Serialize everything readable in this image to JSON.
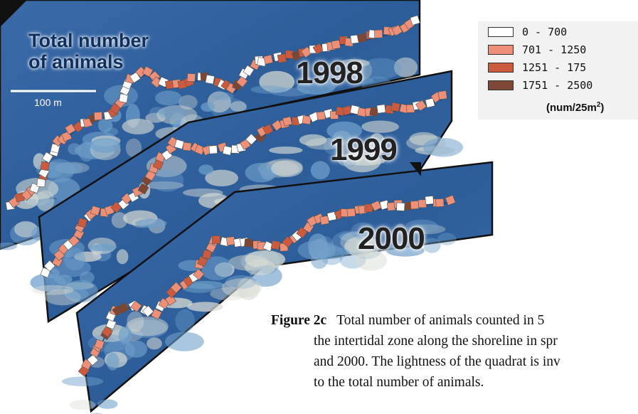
{
  "map": {
    "title_line1": "Total number",
    "title_line2": "of  animals",
    "scale_label": "100 m",
    "years": [
      "1998",
      "1999",
      "2000"
    ]
  },
  "legend": {
    "items": [
      {
        "range": "0 - 700",
        "color": "#ffffff"
      },
      {
        "range": "701 - 1250",
        "color": "#ee8f78"
      },
      {
        "range": "1251 - 175",
        "color": "#cc5a3e"
      },
      {
        "range": "1751 - 2500",
        "color": "#7e4634"
      }
    ],
    "unit_prefix": "(num/25m",
    "unit_exp": "2",
    "unit_suffix": ")"
  },
  "caption": {
    "label": "Figure 2c",
    "line1": "Total number of animals counted in 5",
    "line2": "the intertidal zone along the shoreline in spr",
    "line3": "and 2000. The lightness of the quadrat is inv",
    "line4": "to the total number of animals."
  },
  "colors": {
    "sea": "#2f63a3",
    "reef": "#6f9fca",
    "sand": "#d8dcd4"
  }
}
